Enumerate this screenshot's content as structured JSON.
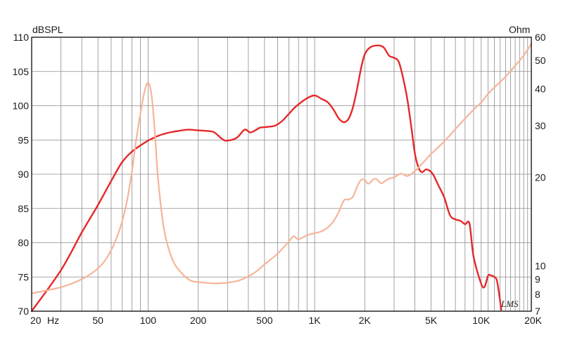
{
  "chart_data": {
    "type": "line",
    "title": "",
    "x_scale": "log",
    "xlim": [
      20,
      20000
    ],
    "ylim_left": [
      70,
      110
    ],
    "ylim_right": [
      7,
      60
    ],
    "right_axis_scale": "log",
    "grid": true,
    "left_unit_label": "dBSPL",
    "right_unit_label": "Ohm",
    "x_unit_label": "Hz",
    "x_ticks": [
      {
        "value": 20,
        "label": "20"
      },
      {
        "value": 50,
        "label": "50"
      },
      {
        "value": 100,
        "label": "100"
      },
      {
        "value": 200,
        "label": "200"
      },
      {
        "value": 500,
        "label": "500"
      },
      {
        "value": 1000,
        "label": "1K"
      },
      {
        "value": 2000,
        "label": "2K"
      },
      {
        "value": 5000,
        "label": "5K"
      },
      {
        "value": 10000,
        "label": "10K"
      },
      {
        "value": 20000,
        "label": "20K"
      }
    ],
    "y_left_ticks": [
      "70",
      "75",
      "80",
      "85",
      "90",
      "95",
      "100",
      "105",
      "110"
    ],
    "y_right_ticks": [
      {
        "value": 7,
        "label": "7"
      },
      {
        "value": 8,
        "label": "8"
      },
      {
        "value": 9,
        "label": "9"
      },
      {
        "value": 10,
        "label": "10"
      },
      {
        "value": 20,
        "label": "20"
      },
      {
        "value": 30,
        "label": "30"
      },
      {
        "value": 40,
        "label": "40"
      },
      {
        "value": 50,
        "label": "50"
      },
      {
        "value": 60,
        "label": "60"
      }
    ],
    "signature": "LMS",
    "series": [
      {
        "axis": "left",
        "color": "#e5282a",
        "points": [
          [
            20,
            69.5
          ],
          [
            30,
            76
          ],
          [
            40,
            81.5
          ],
          [
            50,
            85.5
          ],
          [
            60,
            89
          ],
          [
            70,
            91.8
          ],
          [
            80,
            93.3
          ],
          [
            90,
            94.2
          ],
          [
            100,
            94.9
          ],
          [
            110,
            95.4
          ],
          [
            125,
            95.9
          ],
          [
            150,
            96.3
          ],
          [
            175,
            96.5
          ],
          [
            200,
            96.4
          ],
          [
            230,
            96.3
          ],
          [
            250,
            96.1
          ],
          [
            280,
            95.1
          ],
          [
            300,
            94.9
          ],
          [
            340,
            95.3
          ],
          [
            380,
            96.5
          ],
          [
            410,
            96.1
          ],
          [
            440,
            96.4
          ],
          [
            470,
            96.8
          ],
          [
            520,
            96.9
          ],
          [
            580,
            97.1
          ],
          [
            640,
            97.8
          ],
          [
            700,
            98.8
          ],
          [
            750,
            99.6
          ],
          [
            800,
            100.2
          ],
          [
            900,
            101.1
          ],
          [
            1000,
            101.5
          ],
          [
            1100,
            101
          ],
          [
            1200,
            100.5
          ],
          [
            1300,
            99.4
          ],
          [
            1400,
            98.1
          ],
          [
            1500,
            97.6
          ],
          [
            1600,
            98.1
          ],
          [
            1700,
            99.8
          ],
          [
            1800,
            102.5
          ],
          [
            1900,
            105.5
          ],
          [
            2000,
            107.5
          ],
          [
            2150,
            108.5
          ],
          [
            2400,
            108.8
          ],
          [
            2600,
            108.5
          ],
          [
            2800,
            107.3
          ],
          [
            3000,
            107
          ],
          [
            3200,
            106.4
          ],
          [
            3400,
            104
          ],
          [
            3600,
            101
          ],
          [
            3800,
            97
          ],
          [
            4000,
            93
          ],
          [
            4200,
            91
          ],
          [
            4400,
            90.3
          ],
          [
            4700,
            90.7
          ],
          [
            5100,
            90.1
          ],
          [
            5500,
            88.5
          ],
          [
            6000,
            86.6
          ],
          [
            6500,
            84
          ],
          [
            7000,
            83.4
          ],
          [
            7500,
            83.2
          ],
          [
            8000,
            82.7
          ],
          [
            8500,
            82.8
          ],
          [
            9000,
            78
          ],
          [
            10000,
            74
          ],
          [
            10500,
            73.6
          ],
          [
            11000,
            75.2
          ],
          [
            11500,
            75.2
          ],
          [
            12000,
            75
          ],
          [
            12500,
            74.2
          ],
          [
            13200,
            70.2
          ]
        ]
      },
      {
        "axis": "right",
        "color": "#f6b49a",
        "points": [
          [
            20,
            8.05
          ],
          [
            25,
            8.25
          ],
          [
            30,
            8.45
          ],
          [
            35,
            8.7
          ],
          [
            40,
            9.0
          ],
          [
            45,
            9.35
          ],
          [
            50,
            9.8
          ],
          [
            55,
            10.4
          ],
          [
            60,
            11.3
          ],
          [
            65,
            12.5
          ],
          [
            70,
            14.2
          ],
          [
            75,
            16.8
          ],
          [
            80,
            21
          ],
          [
            85,
            27
          ],
          [
            90,
            33
          ],
          [
            95,
            39
          ],
          [
            100,
            42
          ],
          [
            105,
            38
          ],
          [
            110,
            28
          ],
          [
            115,
            19.5
          ],
          [
            125,
            13.2
          ],
          [
            140,
            10.5
          ],
          [
            160,
            9.4
          ],
          [
            180,
            8.9
          ],
          [
            200,
            8.8
          ],
          [
            220,
            8.75
          ],
          [
            250,
            8.7
          ],
          [
            280,
            8.72
          ],
          [
            300,
            8.75
          ],
          [
            350,
            8.9
          ],
          [
            400,
            9.2
          ],
          [
            450,
            9.6
          ],
          [
            500,
            10.1
          ],
          [
            600,
            11
          ],
          [
            700,
            12.1
          ],
          [
            750,
            12.6
          ],
          [
            800,
            12.3
          ],
          [
            900,
            12.7
          ],
          [
            1000,
            12.9
          ],
          [
            1100,
            13.1
          ],
          [
            1200,
            13.5
          ],
          [
            1300,
            14.2
          ],
          [
            1400,
            15.3
          ],
          [
            1500,
            16.7
          ],
          [
            1600,
            16.8
          ],
          [
            1700,
            17.2
          ],
          [
            1800,
            18.6
          ],
          [
            1900,
            19.6
          ],
          [
            2000,
            19.6
          ],
          [
            2100,
            19
          ],
          [
            2300,
            19.8
          ],
          [
            2500,
            19.1
          ],
          [
            2600,
            19.3
          ],
          [
            2800,
            19.8
          ],
          [
            3000,
            20
          ],
          [
            3300,
            20.6
          ],
          [
            3600,
            20.2
          ],
          [
            4000,
            21
          ],
          [
            4500,
            22.5
          ],
          [
            5000,
            24
          ],
          [
            6000,
            26.5
          ],
          [
            7000,
            29.2
          ],
          [
            8000,
            31.7
          ],
          [
            9000,
            34
          ],
          [
            10000,
            36
          ],
          [
            11000,
            38.5
          ],
          [
            12000,
            40.5
          ],
          [
            14000,
            44
          ],
          [
            16000,
            48
          ],
          [
            18000,
            52
          ],
          [
            20000,
            57
          ]
        ]
      }
    ]
  }
}
